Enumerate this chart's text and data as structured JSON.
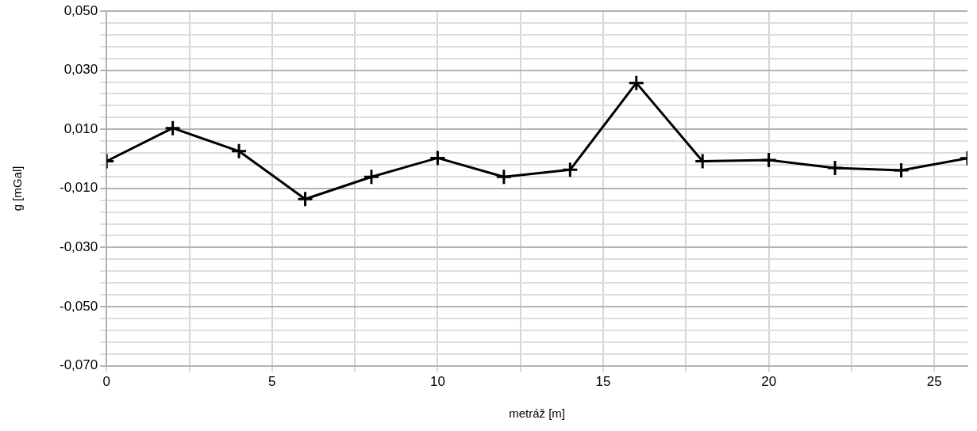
{
  "chart_data": {
    "type": "line",
    "xlabel": "metráž [m]",
    "ylabel": "g [mGal]",
    "x": [
      0,
      2,
      4,
      6,
      8,
      10,
      12,
      14,
      16,
      18,
      20,
      22,
      24,
      26
    ],
    "series": [
      {
        "color": "#000000",
        "values": [
          -0.0008,
          0.0104,
          0.0026,
          -0.0136,
          -0.0061,
          0.0003,
          -0.0061,
          -0.0037,
          0.0257,
          -0.0008,
          -0.0004,
          -0.0031,
          -0.0039,
          0.0002
        ]
      }
    ],
    "xlim": [
      0,
      26
    ],
    "xticks": [
      0,
      {
        "value": 2.5,
        "label": null
      },
      5,
      {
        "value": 7.5,
        "label": null
      },
      10,
      {
        "value": 12.5,
        "label": null
      },
      15,
      {
        "value": 17.5,
        "label": null
      },
      20,
      {
        "value": 22.5,
        "label": null
      },
      25
    ],
    "ylim": [
      -0.07,
      0.05
    ],
    "yticks": [
      {
        "value": -0.07,
        "label": "-0,070"
      },
      {
        "value": -0.066,
        "label": null
      },
      {
        "value": -0.062,
        "label": null
      },
      {
        "value": -0.058,
        "label": null
      },
      {
        "value": -0.054,
        "label": null
      },
      {
        "value": -0.05,
        "label": "-0,050"
      },
      {
        "value": -0.046,
        "label": null
      },
      {
        "value": -0.042,
        "label": null
      },
      {
        "value": -0.038,
        "label": null
      },
      {
        "value": -0.034,
        "label": null
      },
      {
        "value": -0.03,
        "label": "-0,030"
      },
      {
        "value": -0.026,
        "label": null
      },
      {
        "value": -0.022,
        "label": null
      },
      {
        "value": -0.018,
        "label": null
      },
      {
        "value": -0.014,
        "label": null
      },
      {
        "value": -0.01,
        "label": "-0,010"
      },
      {
        "value": -0.006,
        "label": null
      },
      {
        "value": -0.002,
        "label": null
      },
      {
        "value": 0.002,
        "label": null
      },
      {
        "value": 0.006,
        "label": null
      },
      {
        "value": 0.01,
        "label": "0,010"
      },
      {
        "value": 0.014,
        "label": null
      },
      {
        "value": 0.018,
        "label": null
      },
      {
        "value": 0.022,
        "label": null
      },
      {
        "value": 0.026,
        "label": null
      },
      {
        "value": 0.03,
        "label": "0,030"
      },
      {
        "value": 0.034,
        "label": null
      },
      {
        "value": 0.038,
        "label": null
      },
      {
        "value": 0.042,
        "label": null
      },
      {
        "value": 0.046,
        "label": null
      },
      {
        "value": 0.05,
        "label": "0,050"
      }
    ],
    "grid": true,
    "legend": false,
    "marker": "cross",
    "line_style": "solid"
  }
}
